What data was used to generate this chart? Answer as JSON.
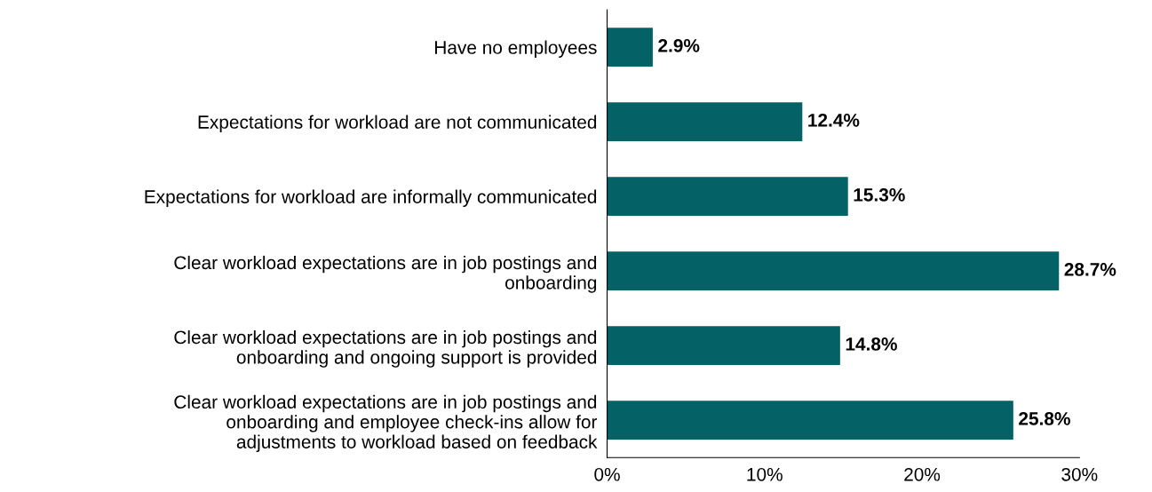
{
  "chart_data": {
    "type": "bar",
    "orientation": "horizontal",
    "categories": [
      "Have no employees",
      "Expectations for workload are not communicated",
      "Expectations for workload are informally communicated",
      "Clear workload expectations are in job postings and\nonboarding",
      "Clear workload expectations are in job postings and\nonboarding and ongoing support is provided",
      "Clear workload expectations are in job postings and\nonboarding and employee check-ins allow for\nadjustments to workload based on feedback"
    ],
    "values": [
      2.9,
      12.4,
      15.3,
      28.7,
      14.8,
      25.8
    ],
    "color": "#046266",
    "value_labels": [
      "2.9%",
      "12.4%",
      "15.3%",
      "28.7%",
      "14.8%",
      "25.8%"
    ],
    "xlim": [
      0,
      30
    ],
    "xticks": [
      {
        "value": 0,
        "label": "0%"
      },
      {
        "value": 10,
        "label": "10%"
      },
      {
        "value": 20,
        "label": "20%"
      },
      {
        "value": 30,
        "label": "30%"
      }
    ],
    "grid": false,
    "legend": false
  }
}
